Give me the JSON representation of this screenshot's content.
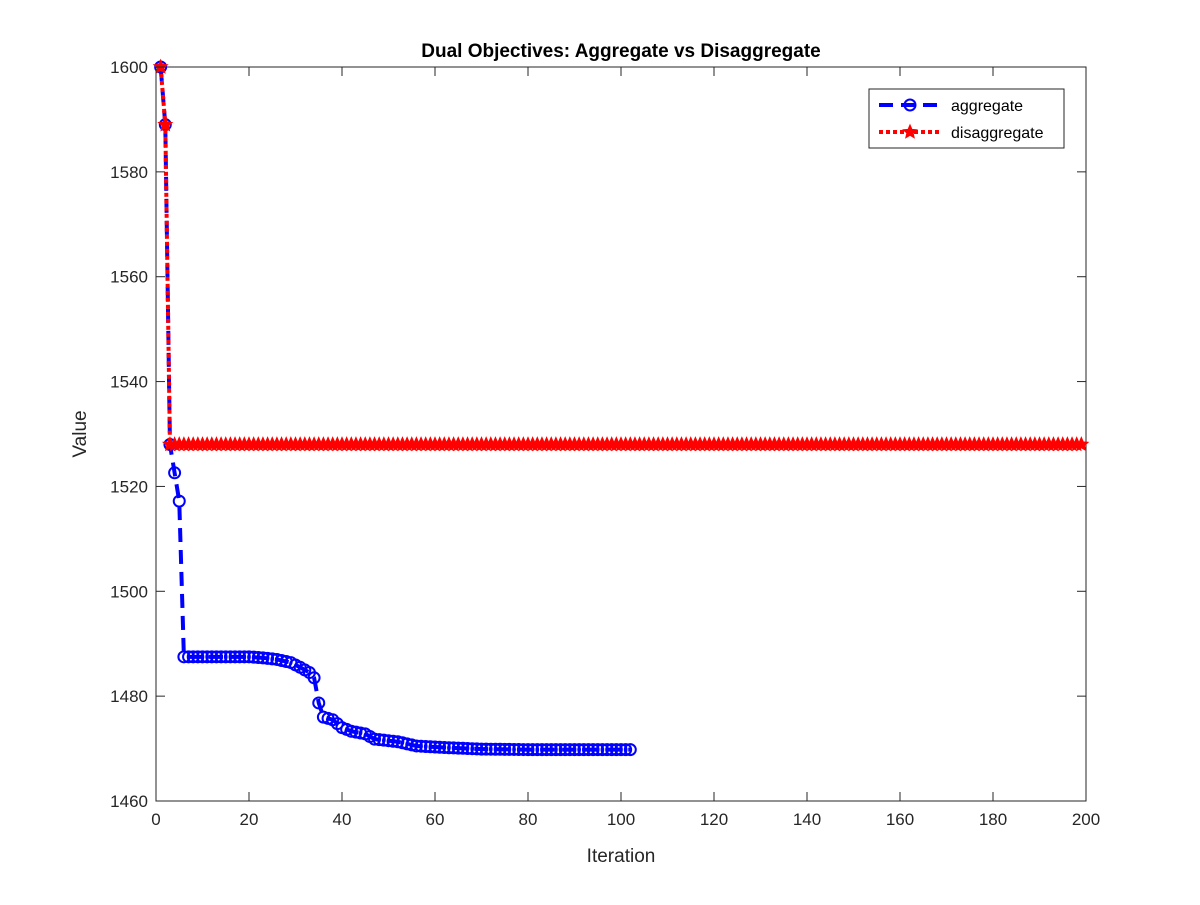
{
  "chart_data": {
    "type": "line",
    "title": "Dual Objectives: Aggregate vs Disaggregate",
    "xlabel": "Iteration",
    "ylabel": "Value",
    "xlim": [
      0,
      200
    ],
    "ylim": [
      1460,
      1600
    ],
    "xticks": [
      0,
      20,
      40,
      60,
      80,
      100,
      120,
      140,
      160,
      180,
      200
    ],
    "yticks": [
      1460,
      1480,
      1500,
      1520,
      1540,
      1560,
      1580,
      1600
    ],
    "grid": false,
    "legend_position": "top-right",
    "series": [
      {
        "name": "aggregate",
        "color": "#0000ff",
        "line_style": "dashed",
        "marker": "open-circle",
        "points": [
          [
            1,
            1600
          ],
          [
            2,
            1589
          ],
          [
            3,
            1528
          ],
          [
            5,
            1517.2
          ],
          [
            6,
            1487.5
          ],
          [
            20,
            1487.5
          ],
          [
            23,
            1487.3
          ],
          [
            26,
            1487
          ],
          [
            29,
            1486.4
          ],
          [
            31,
            1485.5
          ],
          [
            33,
            1484.5
          ],
          [
            34,
            1483.5
          ],
          [
            35,
            1478.7
          ],
          [
            36,
            1476
          ],
          [
            38,
            1475.5
          ],
          [
            40,
            1474
          ],
          [
            42,
            1473.3
          ],
          [
            45,
            1472.8
          ],
          [
            47,
            1471.8
          ],
          [
            52,
            1471.3
          ],
          [
            56,
            1470.5
          ],
          [
            62,
            1470.2
          ],
          [
            70,
            1469.9
          ],
          [
            80,
            1469.8
          ],
          [
            102,
            1469.8
          ]
        ]
      },
      {
        "name": "disaggregate",
        "color": "#ff0000",
        "line_style": "dotted",
        "marker": "filled-star",
        "points": [
          [
            1,
            1600
          ],
          [
            2,
            1589
          ],
          [
            3,
            1528
          ],
          [
            199,
            1528
          ]
        ]
      }
    ]
  }
}
